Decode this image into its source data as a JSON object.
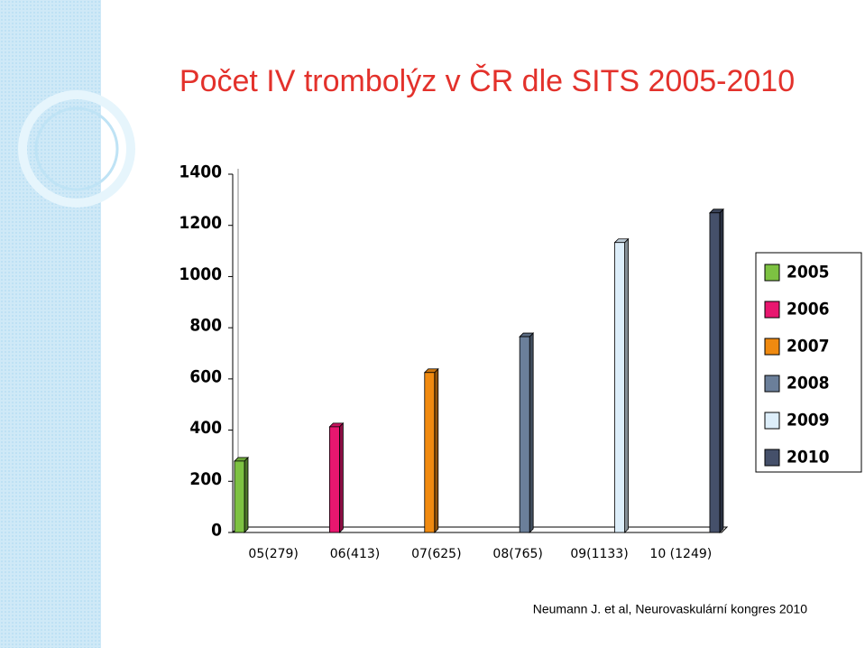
{
  "chart_data": {
    "type": "bar",
    "title": "Počet IV trombolýz v ČR dle SITS 2005-2010",
    "categories": [
      "05(279)",
      "06(413)",
      "07(625)",
      "08(765)",
      "09(1133)",
      "10 (1249)"
    ],
    "series": [
      {
        "name": "2005",
        "color": "#7dc242",
        "values": [
          279,
          null,
          null,
          null,
          null,
          null
        ]
      },
      {
        "name": "2006",
        "color": "#e8176f",
        "values": [
          null,
          413,
          null,
          null,
          null,
          null
        ]
      },
      {
        "name": "2007",
        "color": "#f08a10",
        "values": [
          null,
          null,
          625,
          null,
          null,
          null
        ]
      },
      {
        "name": "2008",
        "color": "#6b7f9a",
        "values": [
          null,
          null,
          null,
          765,
          null,
          null
        ]
      },
      {
        "name": "2009",
        "color": "#ddeefa",
        "values": [
          null,
          null,
          null,
          null,
          1133,
          null
        ]
      },
      {
        "name": "2010",
        "color": "#45506a",
        "values": [
          null,
          null,
          null,
          null,
          null,
          1249
        ]
      }
    ],
    "ylim": [
      0,
      1400
    ],
    "yticks": [
      0,
      200,
      400,
      600,
      800,
      1000,
      1200,
      1400
    ],
    "grid": false,
    "legend": "right",
    "annotation": "Neumann J. et al, Neurovaskulární kongres 2010"
  }
}
